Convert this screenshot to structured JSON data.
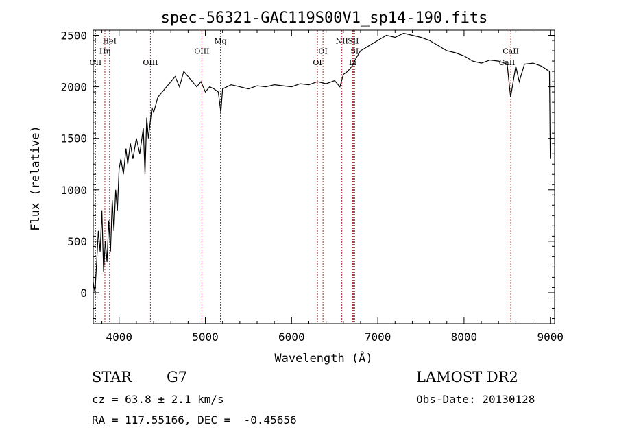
{
  "chart_data": {
    "type": "line",
    "title": "spec-56321-GAC119S00V1_sp14-190.fits",
    "xlabel": "Wavelength (Å)",
    "ylabel": "Flux (relative)",
    "xlim": [
      3700,
      9050
    ],
    "ylim": [
      -300,
      2550
    ],
    "xticks": [
      {
        "value": 4000,
        "label": "4000"
      },
      {
        "value": 5000,
        "label": "5000"
      },
      {
        "value": 6000,
        "label": "6000"
      },
      {
        "value": 7000,
        "label": "7000"
      },
      {
        "value": 8000,
        "label": "8000"
      },
      {
        "value": 9000,
        "label": "9000"
      }
    ],
    "yticks": [
      {
        "value": 0,
        "label": "0"
      },
      {
        "value": 500,
        "label": "500"
      },
      {
        "value": 1000,
        "label": "1000"
      },
      {
        "value": 1500,
        "label": "1500"
      },
      {
        "value": 2000,
        "label": "2000"
      },
      {
        "value": 2500,
        "label": "2500"
      }
    ],
    "line_color": "#000000",
    "marker_color": "#b22222",
    "series": [
      {
        "x": [
          3700,
          3720,
          3740,
          3760,
          3780,
          3800,
          3820,
          3840,
          3860,
          3880,
          3900,
          3920,
          3940,
          3960,
          3980,
          4000,
          4020,
          4050,
          4080,
          4100,
          4130,
          4160,
          4200,
          4240,
          4280,
          4300,
          4320,
          4340,
          4360,
          4380,
          4400,
          4450,
          4500,
          4550,
          4600,
          4650,
          4700,
          4750,
          4800,
          4850,
          4900,
          4950,
          5000,
          5050,
          5100,
          5150,
          5180,
          5200,
          5250,
          5300,
          5400,
          5500,
          5600,
          5700,
          5800,
          5900,
          6000,
          6100,
          6200,
          6300,
          6400,
          6500,
          6560,
          6600,
          6650,
          6700,
          6750,
          6800,
          6900,
          7000,
          7100,
          7200,
          7300,
          7400,
          7500,
          7600,
          7700,
          7800,
          7900,
          8000,
          8100,
          8200,
          8300,
          8400,
          8500,
          8540,
          8600,
          8640,
          8700,
          8800,
          8900,
          8990,
          9000
        ],
        "y": [
          100,
          0,
          300,
          600,
          400,
          800,
          200,
          500,
          300,
          700,
          400,
          900,
          600,
          1000,
          800,
          1200,
          1300,
          1150,
          1400,
          1250,
          1450,
          1300,
          1500,
          1350,
          1600,
          1150,
          1700,
          1500,
          1650,
          1800,
          1750,
          1900,
          1950,
          2000,
          2050,
          2100,
          2000,
          2150,
          2100,
          2050,
          2000,
          2050,
          1950,
          2000,
          1980,
          1950,
          1750,
          1980,
          2000,
          2020,
          2000,
          1980,
          2010,
          2000,
          2020,
          2010,
          2000,
          2030,
          2020,
          2050,
          2030,
          2060,
          2000,
          2120,
          2150,
          2200,
          2280,
          2350,
          2400,
          2450,
          2500,
          2480,
          2520,
          2500,
          2480,
          2450,
          2400,
          2350,
          2330,
          2300,
          2250,
          2230,
          2260,
          2250,
          2220,
          1900,
          2200,
          2050,
          2220,
          2230,
          2200,
          2150,
          1300
        ]
      }
    ],
    "line_markers": [
      {
        "label": "OII",
        "x": 3727,
        "label_y": 2210
      },
      {
        "label": "Hη",
        "x": 3835,
        "label_y": 2320
      },
      {
        "label": "HeI",
        "x": 3889,
        "label_y": 2420
      },
      {
        "label": "OIII",
        "x": 4363,
        "label_y": 2210
      },
      {
        "label": "OIII",
        "x": 4959,
        "label_y": 2320
      },
      {
        "label": "Mg",
        "x": 5175,
        "label_y": 2420
      },
      {
        "label": "OI",
        "x": 6300,
        "label_y": 2210
      },
      {
        "label": "OI",
        "x": 6364,
        "label_y": 2320
      },
      {
        "label": "NII",
        "x": 6583,
        "label_y": 2420
      },
      {
        "label": "SII",
        "x": 6716,
        "label_y": 2420
      },
      {
        "label": "SI",
        "x": 6731,
        "label_y": 2320
      },
      {
        "label": "Li",
        "x": 6708,
        "label_y": 2210
      },
      {
        "label": "CaII",
        "x": 8542,
        "label_y": 2320
      },
      {
        "label": "CaII",
        "x": 8498,
        "label_y": 2210
      }
    ]
  },
  "info": {
    "object_class": "STAR",
    "subclass": "G7",
    "redshift": "cz = 63.8 ± 2.1 km/s",
    "coords": "RA = 117.55166, DEC =  -0.45656",
    "survey": "LAMOST DR2",
    "obs_date": "Obs-Date: 20130128"
  }
}
